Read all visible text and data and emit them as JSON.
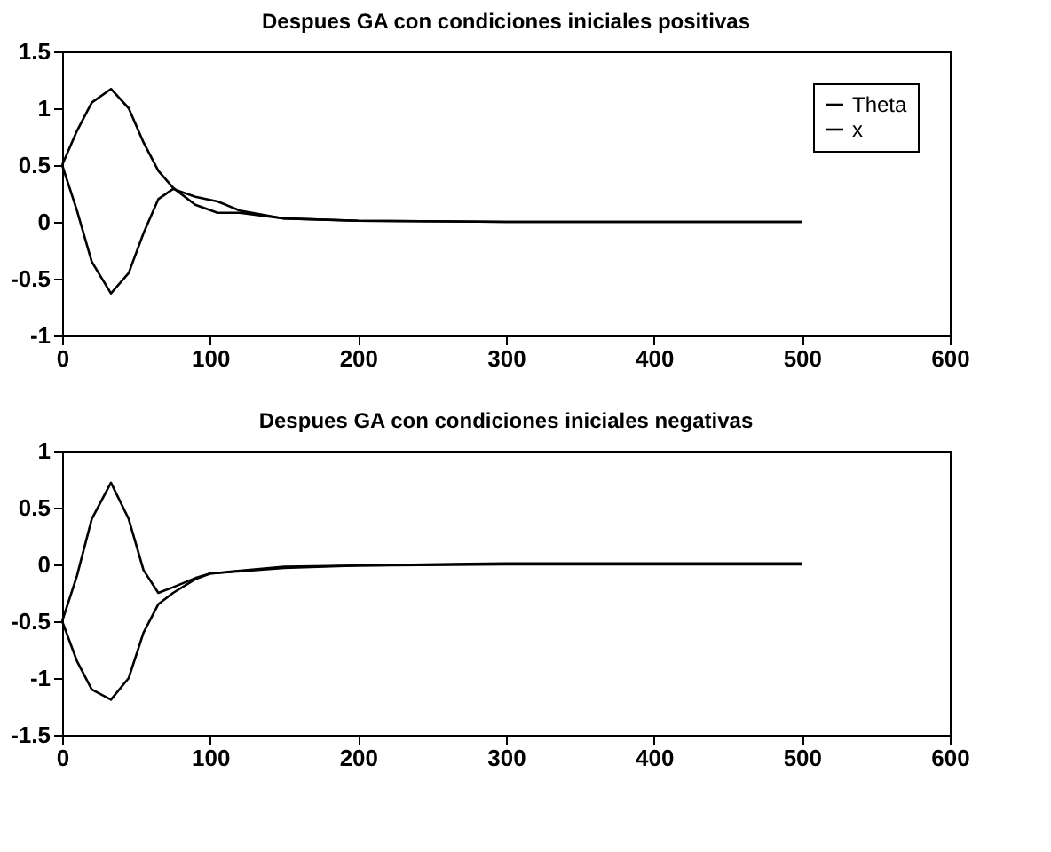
{
  "chart_data": [
    {
      "type": "line",
      "title": "Despues GA con condiciones iniciales positivas",
      "xlim": [
        0,
        600
      ],
      "xticks": [
        0,
        100,
        200,
        300,
        400,
        500,
        600
      ],
      "ylim": [
        -1,
        1.5
      ],
      "yticks": [
        -1,
        -0.5,
        0,
        0.5,
        1,
        1.5
      ],
      "legend": "top right",
      "grid": false,
      "series": [
        {
          "name": "Theta",
          "color": "#000000",
          "x": [
            0,
            10,
            20,
            33,
            45,
            55,
            65,
            75,
            90,
            105,
            120,
            150,
            200,
            300,
            500
          ],
          "values": [
            0.5,
            0.8,
            1.05,
            1.17,
            1.0,
            0.7,
            0.45,
            0.3,
            0.15,
            0.08,
            0.08,
            0.03,
            0.01,
            0,
            0
          ]
        },
        {
          "name": "x",
          "color": "#000000",
          "x": [
            0,
            10,
            20,
            33,
            45,
            55,
            65,
            75,
            90,
            105,
            120,
            150,
            200,
            300,
            500
          ],
          "values": [
            0.5,
            0.1,
            -0.35,
            -0.63,
            -0.45,
            -0.1,
            0.2,
            0.29,
            0.22,
            0.18,
            0.1,
            0.03,
            0.01,
            0,
            0
          ]
        }
      ]
    },
    {
      "type": "line",
      "title": "Despues GA con condiciones iniciales negativas",
      "xlim": [
        0,
        600
      ],
      "xticks": [
        0,
        100,
        200,
        300,
        400,
        500,
        600
      ],
      "ylim": [
        -1.5,
        1
      ],
      "yticks": [
        -1.5,
        -1,
        -0.5,
        0,
        0.5,
        1
      ],
      "legend": "top right",
      "grid": false,
      "series": [
        {
          "name": "Theta",
          "color": "#000000",
          "x": [
            0,
            10,
            20,
            33,
            45,
            55,
            65,
            75,
            90,
            100,
            150,
            200,
            300,
            500
          ],
          "values": [
            -0.5,
            -0.1,
            0.4,
            0.72,
            0.4,
            -0.05,
            -0.25,
            -0.2,
            -0.12,
            -0.08,
            -0.02,
            -0.01,
            0,
            0
          ]
        },
        {
          "name": "x",
          "color": "#000000",
          "x": [
            0,
            10,
            20,
            33,
            45,
            55,
            65,
            75,
            90,
            100,
            150,
            200,
            300,
            500
          ],
          "values": [
            -0.5,
            -0.85,
            -1.1,
            -1.19,
            -1.0,
            -0.6,
            -0.35,
            -0.25,
            -0.13,
            -0.08,
            -0.03,
            -0.01,
            0.01,
            0.01
          ]
        }
      ]
    }
  ]
}
